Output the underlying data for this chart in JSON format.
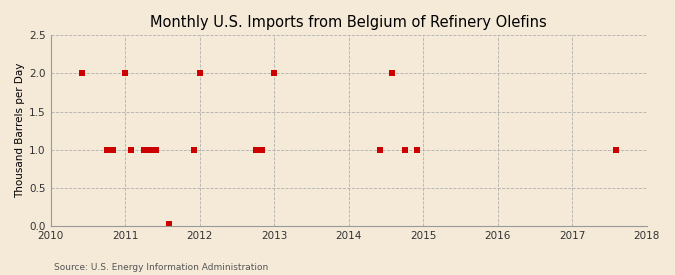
{
  "title": "Monthly U.S. Imports from Belgium of Refinery Olefins",
  "ylabel": "Thousand Barrels per Day",
  "source": "Source: U.S. Energy Information Administration",
  "background_color": "#f5ead8",
  "plot_bg_color": "#f5ead8",
  "marker_color": "#cc0000",
  "grid_color": "#aaaaaa",
  "xlim": [
    2010,
    2018
  ],
  "ylim": [
    0.0,
    2.5
  ],
  "yticks": [
    0.0,
    0.5,
    1.0,
    1.5,
    2.0,
    2.5
  ],
  "xticks": [
    2010,
    2011,
    2012,
    2013,
    2014,
    2015,
    2016,
    2017,
    2018
  ],
  "data_x": [
    2010.417,
    2010.75,
    2010.833,
    2011.0,
    2011.083,
    2011.25,
    2011.333,
    2011.417,
    2011.583,
    2011.917,
    2012.0,
    2012.75,
    2012.833,
    2013.0,
    2014.417,
    2014.583,
    2014.75,
    2014.917,
    2017.583
  ],
  "data_y": [
    2.0,
    1.0,
    1.0,
    2.0,
    1.0,
    1.0,
    1.0,
    1.0,
    0.03,
    1.0,
    2.0,
    1.0,
    1.0,
    2.0,
    1.0,
    2.0,
    1.0,
    1.0,
    1.0
  ]
}
